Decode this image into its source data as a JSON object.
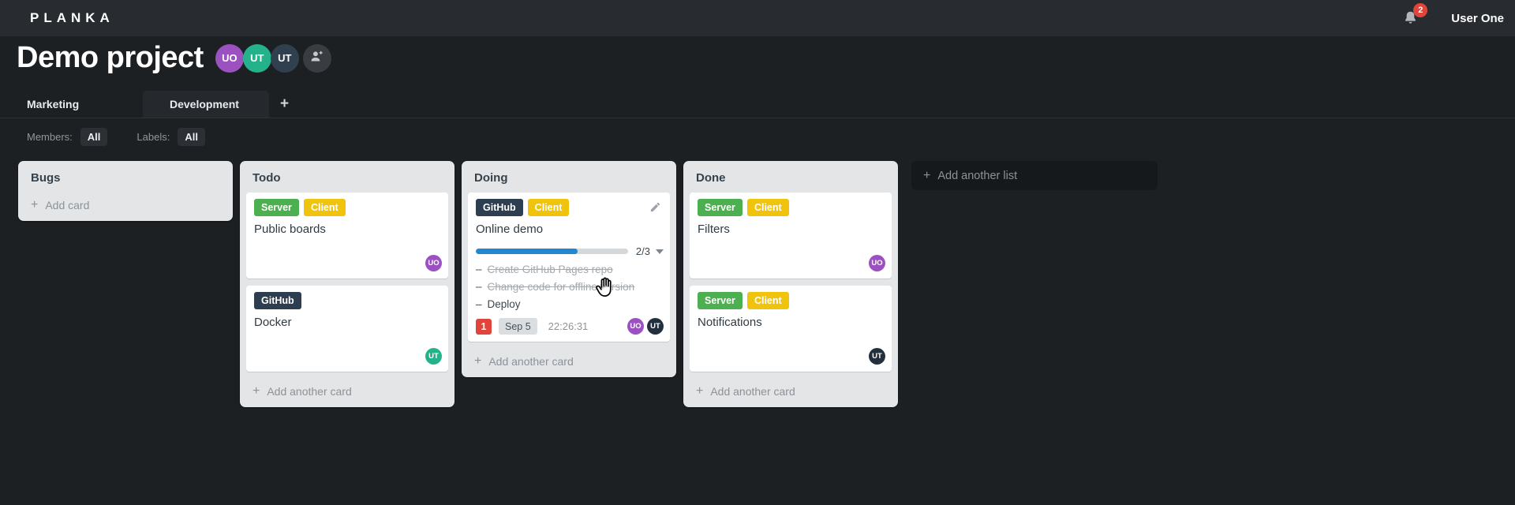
{
  "topbar": {
    "logo": "PLANKA",
    "notification_count": "2",
    "user_name": "User One"
  },
  "project": {
    "title": "Demo project",
    "members": [
      {
        "initials": "UO",
        "color": "#9b51bf"
      },
      {
        "initials": "UT",
        "color": "#23b28a"
      },
      {
        "initials": "UT",
        "color": "#31404f"
      }
    ]
  },
  "tabs": {
    "items": [
      {
        "label": "Marketing"
      },
      {
        "label": "Development"
      }
    ],
    "add_icon": "+"
  },
  "filters": {
    "members_label": "Members:",
    "members_value": "All",
    "labels_label": "Labels:",
    "labels_value": "All"
  },
  "board": {
    "add_icon": "+",
    "add_list_label": "Add another list",
    "lists": [
      {
        "name": "Bugs",
        "add_label": "Add card",
        "cards": []
      },
      {
        "name": "Todo",
        "add_label": "Add another card",
        "cards": [
          {
            "title": "Public boards",
            "labels": [
              {
                "text": "Server",
                "color": "#4caf50"
              },
              {
                "text": "Client",
                "color": "#f0c30c"
              }
            ],
            "members": [
              {
                "initials": "UO",
                "color": "#9b51bf"
              }
            ]
          },
          {
            "title": "Docker",
            "labels": [
              {
                "text": "GitHub",
                "color": "#2d3e50"
              }
            ],
            "members": [
              {
                "initials": "UT",
                "color": "#23b28a"
              }
            ]
          }
        ]
      },
      {
        "name": "Doing",
        "add_label": "Add another card",
        "cards": [
          {
            "title": "Online demo",
            "labels": [
              {
                "text": "GitHub",
                "color": "#2d3e50"
              },
              {
                "text": "Client",
                "color": "#f0c30c"
              }
            ],
            "progress": {
              "label": "2/3",
              "percent": 67,
              "color": "#2287d0"
            },
            "tasks": [
              {
                "marker": "–",
                "text": "Create GitHub Pages repo",
                "completed": true
              },
              {
                "marker": "–",
                "text": "Change code for offline version",
                "completed": true
              },
              {
                "marker": "–",
                "text": "Deploy",
                "completed": false
              }
            ],
            "stopwatch_badge": "1",
            "due_date": "Sep 5",
            "time": "22:26:31",
            "members": [
              {
                "initials": "UO",
                "color": "#9b51bf"
              },
              {
                "initials": "UT",
                "color": "#222f3c"
              }
            ]
          }
        ]
      },
      {
        "name": "Done",
        "add_label": "Add another card",
        "cards": [
          {
            "title": "Filters",
            "labels": [
              {
                "text": "Server",
                "color": "#4caf50"
              },
              {
                "text": "Client",
                "color": "#f0c30c"
              }
            ],
            "members": [
              {
                "initials": "UO",
                "color": "#9b51bf"
              }
            ]
          },
          {
            "title": "Notifications",
            "labels": [
              {
                "text": "Server",
                "color": "#4caf50"
              },
              {
                "text": "Client",
                "color": "#f0c30c"
              }
            ],
            "members": [
              {
                "initials": "UT",
                "color": "#222f3c"
              }
            ]
          }
        ]
      }
    ]
  }
}
